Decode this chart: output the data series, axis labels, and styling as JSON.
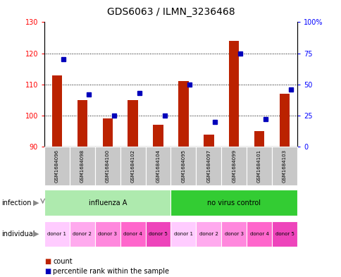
{
  "title": "GDS6063 / ILMN_3236468",
  "samples": [
    "GSM1684096",
    "GSM1684098",
    "GSM1684100",
    "GSM1684102",
    "GSM1684104",
    "GSM1684095",
    "GSM1684097",
    "GSM1684099",
    "GSM1684101",
    "GSM1684103"
  ],
  "counts": [
    113,
    105,
    99,
    105,
    97,
    111,
    94,
    124,
    95,
    107
  ],
  "percentiles": [
    70,
    42,
    25,
    43,
    25,
    50,
    20,
    75,
    22,
    46
  ],
  "ylim_left": [
    90,
    130
  ],
  "ylim_right": [
    0,
    100
  ],
  "yticks_left": [
    90,
    100,
    110,
    120,
    130
  ],
  "yticks_right": [
    0,
    25,
    50,
    75,
    100
  ],
  "infection_groups": [
    {
      "label": "influenza A",
      "start": 0,
      "end": 5,
      "color": "#AEEAAE"
    },
    {
      "label": "no virus control",
      "start": 5,
      "end": 10,
      "color": "#33CC33"
    }
  ],
  "individuals": [
    "donor 1",
    "donor 2",
    "donor 3",
    "donor 4",
    "donor 5",
    "donor 1",
    "donor 2",
    "donor 3",
    "donor 4",
    "donor 5"
  ],
  "donor_colors": [
    "#FFBBFF",
    "#FF99EE",
    "#FF77DD",
    "#FF55CC",
    "#EE33BB",
    "#FFBBFF",
    "#FF99EE",
    "#FF77DD",
    "#FF55CC",
    "#EE33BB"
  ],
  "bar_color": "#BB2200",
  "percentile_color": "#0000BB",
  "bar_baseline": 90,
  "bg_color": "#FFFFFF",
  "label_infection": "infection",
  "label_individual": "individual",
  "legend_count": "count",
  "legend_percentile": "percentile rank within the sample",
  "title_fontsize": 10,
  "tick_fontsize": 7,
  "sample_fontsize": 5,
  "row_fontsize": 7,
  "legend_fontsize": 7
}
